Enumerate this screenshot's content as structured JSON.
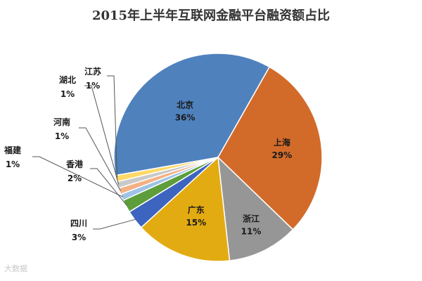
{
  "chart_data": {
    "type": "pie",
    "title": "2015年上半年互联网金融平台融资额占比",
    "slices": [
      {
        "name": "北京",
        "value": 36,
        "label": "36%",
        "color": "#4f81bd"
      },
      {
        "name": "上海",
        "value": 29,
        "label": "29%",
        "color": "#d26b2a"
      },
      {
        "name": "浙江",
        "value": 11,
        "label": "11%",
        "color": "#969696"
      },
      {
        "name": "广东",
        "value": 15,
        "label": "15%",
        "color": "#e2ab12"
      },
      {
        "name": "四川",
        "value": 3,
        "label": "3%",
        "color": "#3d64be"
      },
      {
        "name": "香港",
        "value": 2,
        "label": "2%",
        "color": "#5d9e3a"
      },
      {
        "name": "福建",
        "value": 1,
        "label": "1%",
        "color": "#9dc3e6"
      },
      {
        "name": "河南",
        "value": 1,
        "label": "1%",
        "color": "#f4b183"
      },
      {
        "name": "湖北",
        "value": 1,
        "label": "1%",
        "color": "#c9c9c9"
      },
      {
        "name": "江苏",
        "value": 1,
        "label": "1%",
        "color": "#ffd966"
      }
    ]
  },
  "watermark": "大数据"
}
